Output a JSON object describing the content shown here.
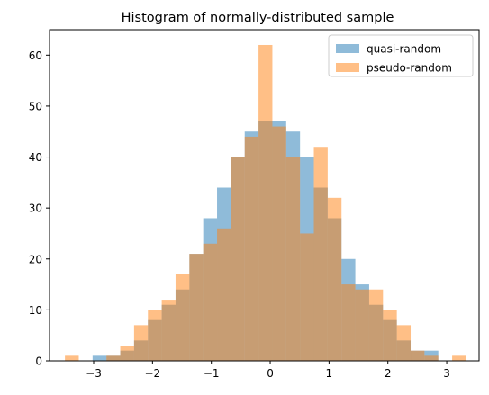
{
  "chart_data": {
    "type": "bar",
    "title": "Histogram of normally-distributed sample",
    "xlabel": "",
    "ylabel": "",
    "xlim": [
      -3.75,
      3.55
    ],
    "ylim": [
      0,
      65
    ],
    "xticks": [
      -3,
      -2,
      -1,
      0,
      1,
      2,
      3
    ],
    "yticks": [
      0,
      10,
      20,
      30,
      40,
      50,
      60
    ],
    "grid": false,
    "legend_position": "top-right",
    "bin_width": 0.235,
    "bins_left_edge": [
      -3.488,
      -3.253,
      -3.018,
      -2.783,
      -2.548,
      -2.313,
      -2.078,
      -1.843,
      -1.608,
      -1.373,
      -1.138,
      -0.903,
      -0.668,
      -0.433,
      -0.198,
      0.037,
      0.272,
      0.507,
      0.742,
      0.977,
      1.212,
      1.447,
      1.682,
      1.917,
      2.152,
      2.387,
      2.622,
      2.857,
      3.092
    ],
    "series": [
      {
        "name": "quasi-random",
        "color": "#1f77b4",
        "alpha": 0.5,
        "values": [
          0,
          0,
          1,
          1,
          2,
          4,
          8,
          11,
          14,
          21,
          28,
          34,
          40,
          45,
          47,
          47,
          45,
          40,
          34,
          28,
          20,
          15,
          11,
          8,
          4,
          2,
          2,
          0,
          0
        ]
      },
      {
        "name": "pseudo-random",
        "color": "#ff7f0e",
        "alpha": 0.5,
        "values": [
          1,
          0,
          0,
          1,
          3,
          7,
          10,
          12,
          17,
          21,
          23,
          26,
          40,
          44,
          62,
          46,
          40,
          25,
          42,
          32,
          15,
          14,
          14,
          10,
          7,
          2,
          1,
          0,
          1
        ]
      }
    ]
  }
}
